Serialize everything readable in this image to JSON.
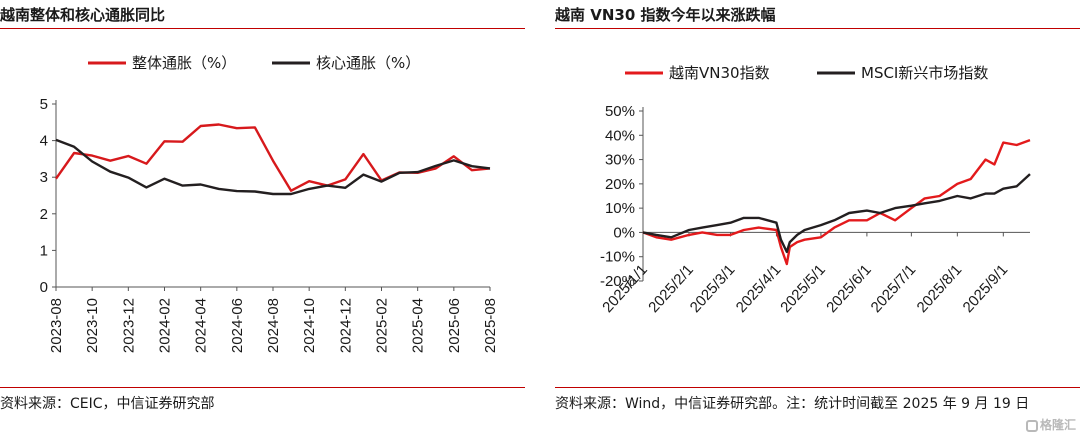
{
  "left": {
    "title": "越南整体和核心通胀同比",
    "source": "资料来源：CEIC，中信证券研究部",
    "chart_data": {
      "type": "line",
      "x": [
        "2023-08",
        "2023-09",
        "2023-10",
        "2023-11",
        "2023-12",
        "2024-01",
        "2024-02",
        "2024-03",
        "2024-04",
        "2024-05",
        "2024-06",
        "2024-07",
        "2024-08",
        "2024-09",
        "2024-10",
        "2024-11",
        "2024-12",
        "2025-01",
        "2025-02",
        "2025-03",
        "2025-04",
        "2025-05",
        "2025-06",
        "2025-07",
        "2025-08"
      ],
      "x_tick_labels": [
        "2023-08",
        "2023-10",
        "2023-12",
        "2024-02",
        "2024-04",
        "2024-06",
        "2024-08",
        "2024-10",
        "2024-12",
        "2025-02",
        "2025-04",
        "2025-06",
        "2025-08"
      ],
      "ylim": [
        0,
        5
      ],
      "y_ticks": [
        "0",
        "1",
        "2",
        "3",
        "4",
        "5"
      ],
      "legend_position": "top",
      "series": [
        {
          "name": "整体通胀（%）",
          "color": "#d7191c",
          "values": [
            2.96,
            3.66,
            3.59,
            3.45,
            3.58,
            3.37,
            3.98,
            3.97,
            4.4,
            4.44,
            4.34,
            4.36,
            3.45,
            2.63,
            2.89,
            2.77,
            2.94,
            3.63,
            2.91,
            3.13,
            3.12,
            3.24,
            3.57,
            3.19,
            3.24
          ]
        },
        {
          "name": "核心通胀（%）",
          "color": "#231f20",
          "values": [
            4.02,
            3.83,
            3.43,
            3.15,
            2.99,
            2.72,
            2.96,
            2.77,
            2.8,
            2.68,
            2.62,
            2.61,
            2.54,
            2.54,
            2.68,
            2.77,
            2.71,
            3.07,
            2.88,
            3.12,
            3.14,
            3.31,
            3.46,
            3.3,
            3.24
          ]
        }
      ]
    }
  },
  "right": {
    "title": "越南 VN30 指数今年以来涨跌幅",
    "source": "资料来源：Wind，中信证券研究部。注：统计时间截至 2025 年 9 月 19 日",
    "watermark": "格隆汇",
    "chart_data": {
      "type": "line",
      "x": [
        "2025-01-01",
        "2025-01-10",
        "2025-01-20",
        "2025-02-01",
        "2025-02-10",
        "2025-02-20",
        "2025-03-01",
        "2025-03-10",
        "2025-03-20",
        "2025-04-01",
        "2025-04-04",
        "2025-04-08",
        "2025-04-10",
        "2025-04-15",
        "2025-04-20",
        "2025-05-01",
        "2025-05-10",
        "2025-05-20",
        "2025-06-01",
        "2025-06-10",
        "2025-06-20",
        "2025-07-01",
        "2025-07-10",
        "2025-07-20",
        "2025-08-01",
        "2025-08-10",
        "2025-08-20",
        "2025-08-26",
        "2025-09-01",
        "2025-09-10",
        "2025-09-19"
      ],
      "x_tick_labels": [
        "2025/1/1",
        "2025/2/1",
        "2025/3/1",
        "2025/4/1",
        "2025/5/1",
        "2025/6/1",
        "2025/7/1",
        "2025/8/1",
        "2025/9/1"
      ],
      "ylim": [
        -20,
        50
      ],
      "y_ticks": [
        "-20%",
        "-10%",
        "0%",
        "10%",
        "20%",
        "30%",
        "40%",
        "50%"
      ],
      "legend_position": "top",
      "series": [
        {
          "name": "越南VN30指数",
          "color": "#e31a1c",
          "values": [
            0,
            -2,
            -3,
            -1,
            0,
            -1,
            -1,
            1,
            2,
            1,
            -6,
            -13,
            -6,
            -4,
            -3,
            -2,
            2,
            5,
            5,
            8,
            5,
            10,
            14,
            15,
            20,
            22,
            30,
            28,
            37,
            36,
            38
          ]
        },
        {
          "name": "MSCI新兴市场指数",
          "color": "#231f20",
          "values": [
            0,
            -1,
            -2,
            1,
            2,
            3,
            4,
            6,
            6,
            4,
            -3,
            -8,
            -4,
            -1,
            1,
            3,
            5,
            8,
            9,
            8,
            10,
            11,
            12,
            13,
            15,
            14,
            16,
            16,
            18,
            19,
            24
          ]
        }
      ]
    }
  }
}
